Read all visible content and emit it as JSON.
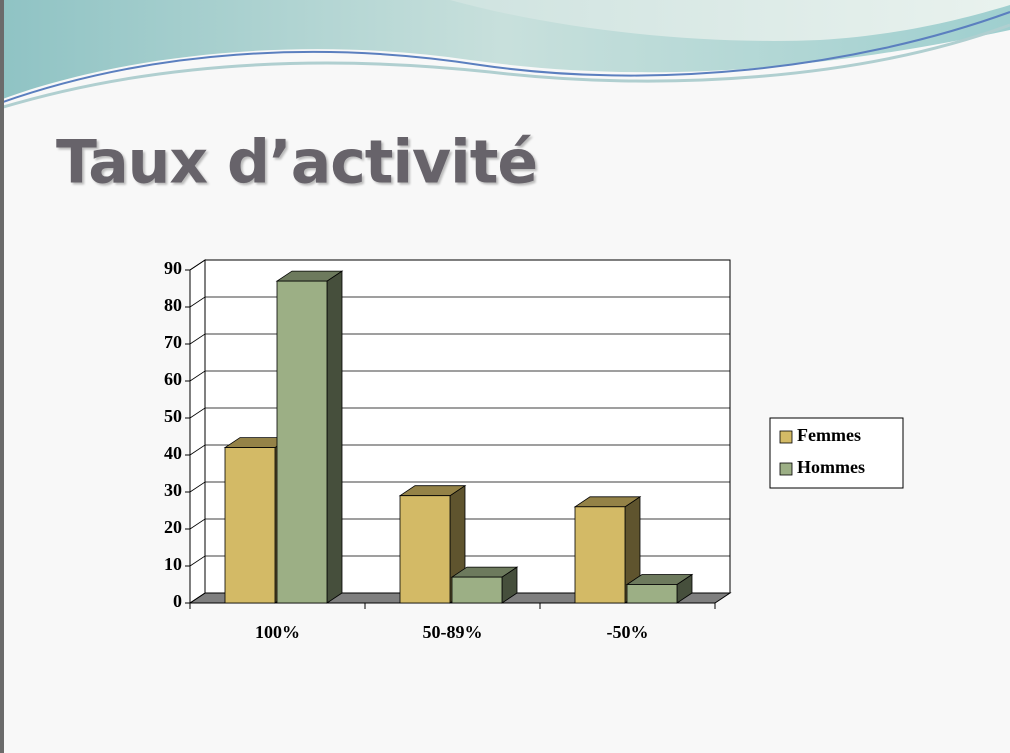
{
  "chart_data": {
    "type": "bar3d",
    "title": "Taux d’activité",
    "categories": [
      "100%",
      "50-89%",
      "-50%"
    ],
    "series": [
      {
        "name": "Femmes",
        "color": "#d3ba66",
        "values": [
          42,
          29,
          26
        ]
      },
      {
        "name": "Hommes",
        "color": "#9caf85",
        "values": [
          87,
          7,
          5
        ]
      }
    ],
    "ylim": [
      0,
      90
    ],
    "yticks": [
      0,
      10,
      20,
      30,
      40,
      50,
      60,
      70,
      80,
      90
    ],
    "grid": true,
    "legend": "right"
  }
}
